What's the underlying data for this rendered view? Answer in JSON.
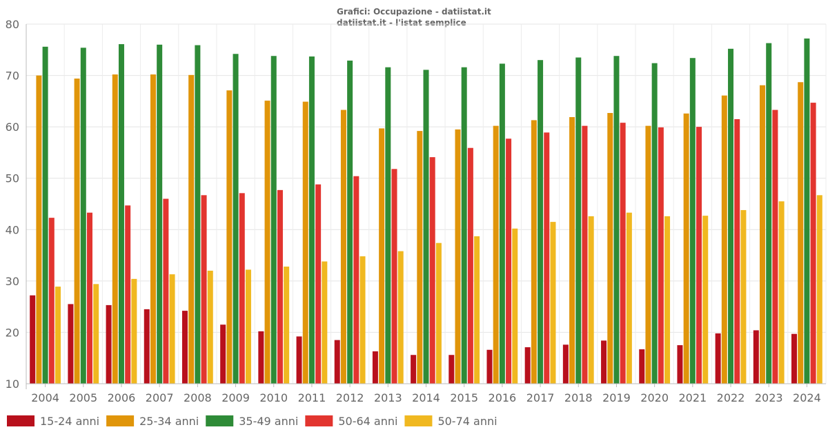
{
  "header": {
    "title": "Grafici: Occupazione - datiistat.it",
    "subtitle": "datiistat.it - l'istat semplice"
  },
  "chart_data": {
    "type": "bar",
    "title": "Grafici: Occupazione - datiistat.it",
    "subtitle": "datiistat.it - l'istat semplice",
    "xlabel": "",
    "ylabel": "",
    "ylim": [
      10,
      80
    ],
    "yticks": [
      10,
      20,
      30,
      40,
      50,
      60,
      70,
      80
    ],
    "grid": true,
    "legend_position": "bottom-left",
    "categories": [
      "2004",
      "2005",
      "2006",
      "2007",
      "2008",
      "2009",
      "2010",
      "2011",
      "2012",
      "2013",
      "2014",
      "2015",
      "2016",
      "2017",
      "2018",
      "2019",
      "2020",
      "2021",
      "2022",
      "2023",
      "2024"
    ],
    "series": [
      {
        "name": "15-24 anni",
        "color": "#b8101c",
        "values": [
          27.2,
          25.5,
          25.3,
          24.5,
          24.2,
          21.5,
          20.2,
          19.2,
          18.5,
          16.3,
          15.6,
          15.6,
          16.6,
          17.1,
          17.6,
          18.4,
          16.7,
          17.5,
          19.8,
          20.4,
          19.7
        ]
      },
      {
        "name": "25-34 anni",
        "color": "#e0950a",
        "values": [
          70.0,
          69.4,
          70.2,
          70.2,
          70.1,
          67.1,
          65.1,
          64.9,
          63.3,
          59.7,
          59.2,
          59.5,
          60.2,
          61.3,
          61.9,
          62.7,
          60.2,
          62.6,
          66.1,
          68.1,
          68.7
        ]
      },
      {
        "name": "35-49 anni",
        "color": "#2e8b37",
        "values": [
          75.6,
          75.4,
          76.1,
          76.0,
          75.9,
          74.2,
          73.8,
          73.7,
          72.9,
          71.6,
          71.1,
          71.6,
          72.3,
          73.0,
          73.5,
          73.8,
          72.4,
          73.4,
          75.2,
          76.3,
          77.2
        ]
      },
      {
        "name": "50-64 anni",
        "color": "#e2352f",
        "values": [
          42.3,
          43.3,
          44.7,
          46.0,
          46.7,
          47.1,
          47.7,
          48.8,
          50.4,
          51.8,
          54.1,
          55.9,
          57.7,
          58.9,
          60.2,
          60.8,
          59.9,
          60.0,
          61.5,
          63.3,
          64.7
        ]
      },
      {
        "name": "50-74 anni",
        "color": "#f0b820",
        "values": [
          28.9,
          29.4,
          30.4,
          31.3,
          32.0,
          32.2,
          32.8,
          33.8,
          34.8,
          35.8,
          37.4,
          38.7,
          40.2,
          41.5,
          42.6,
          43.3,
          42.6,
          42.7,
          43.8,
          45.5,
          46.7
        ]
      }
    ]
  }
}
